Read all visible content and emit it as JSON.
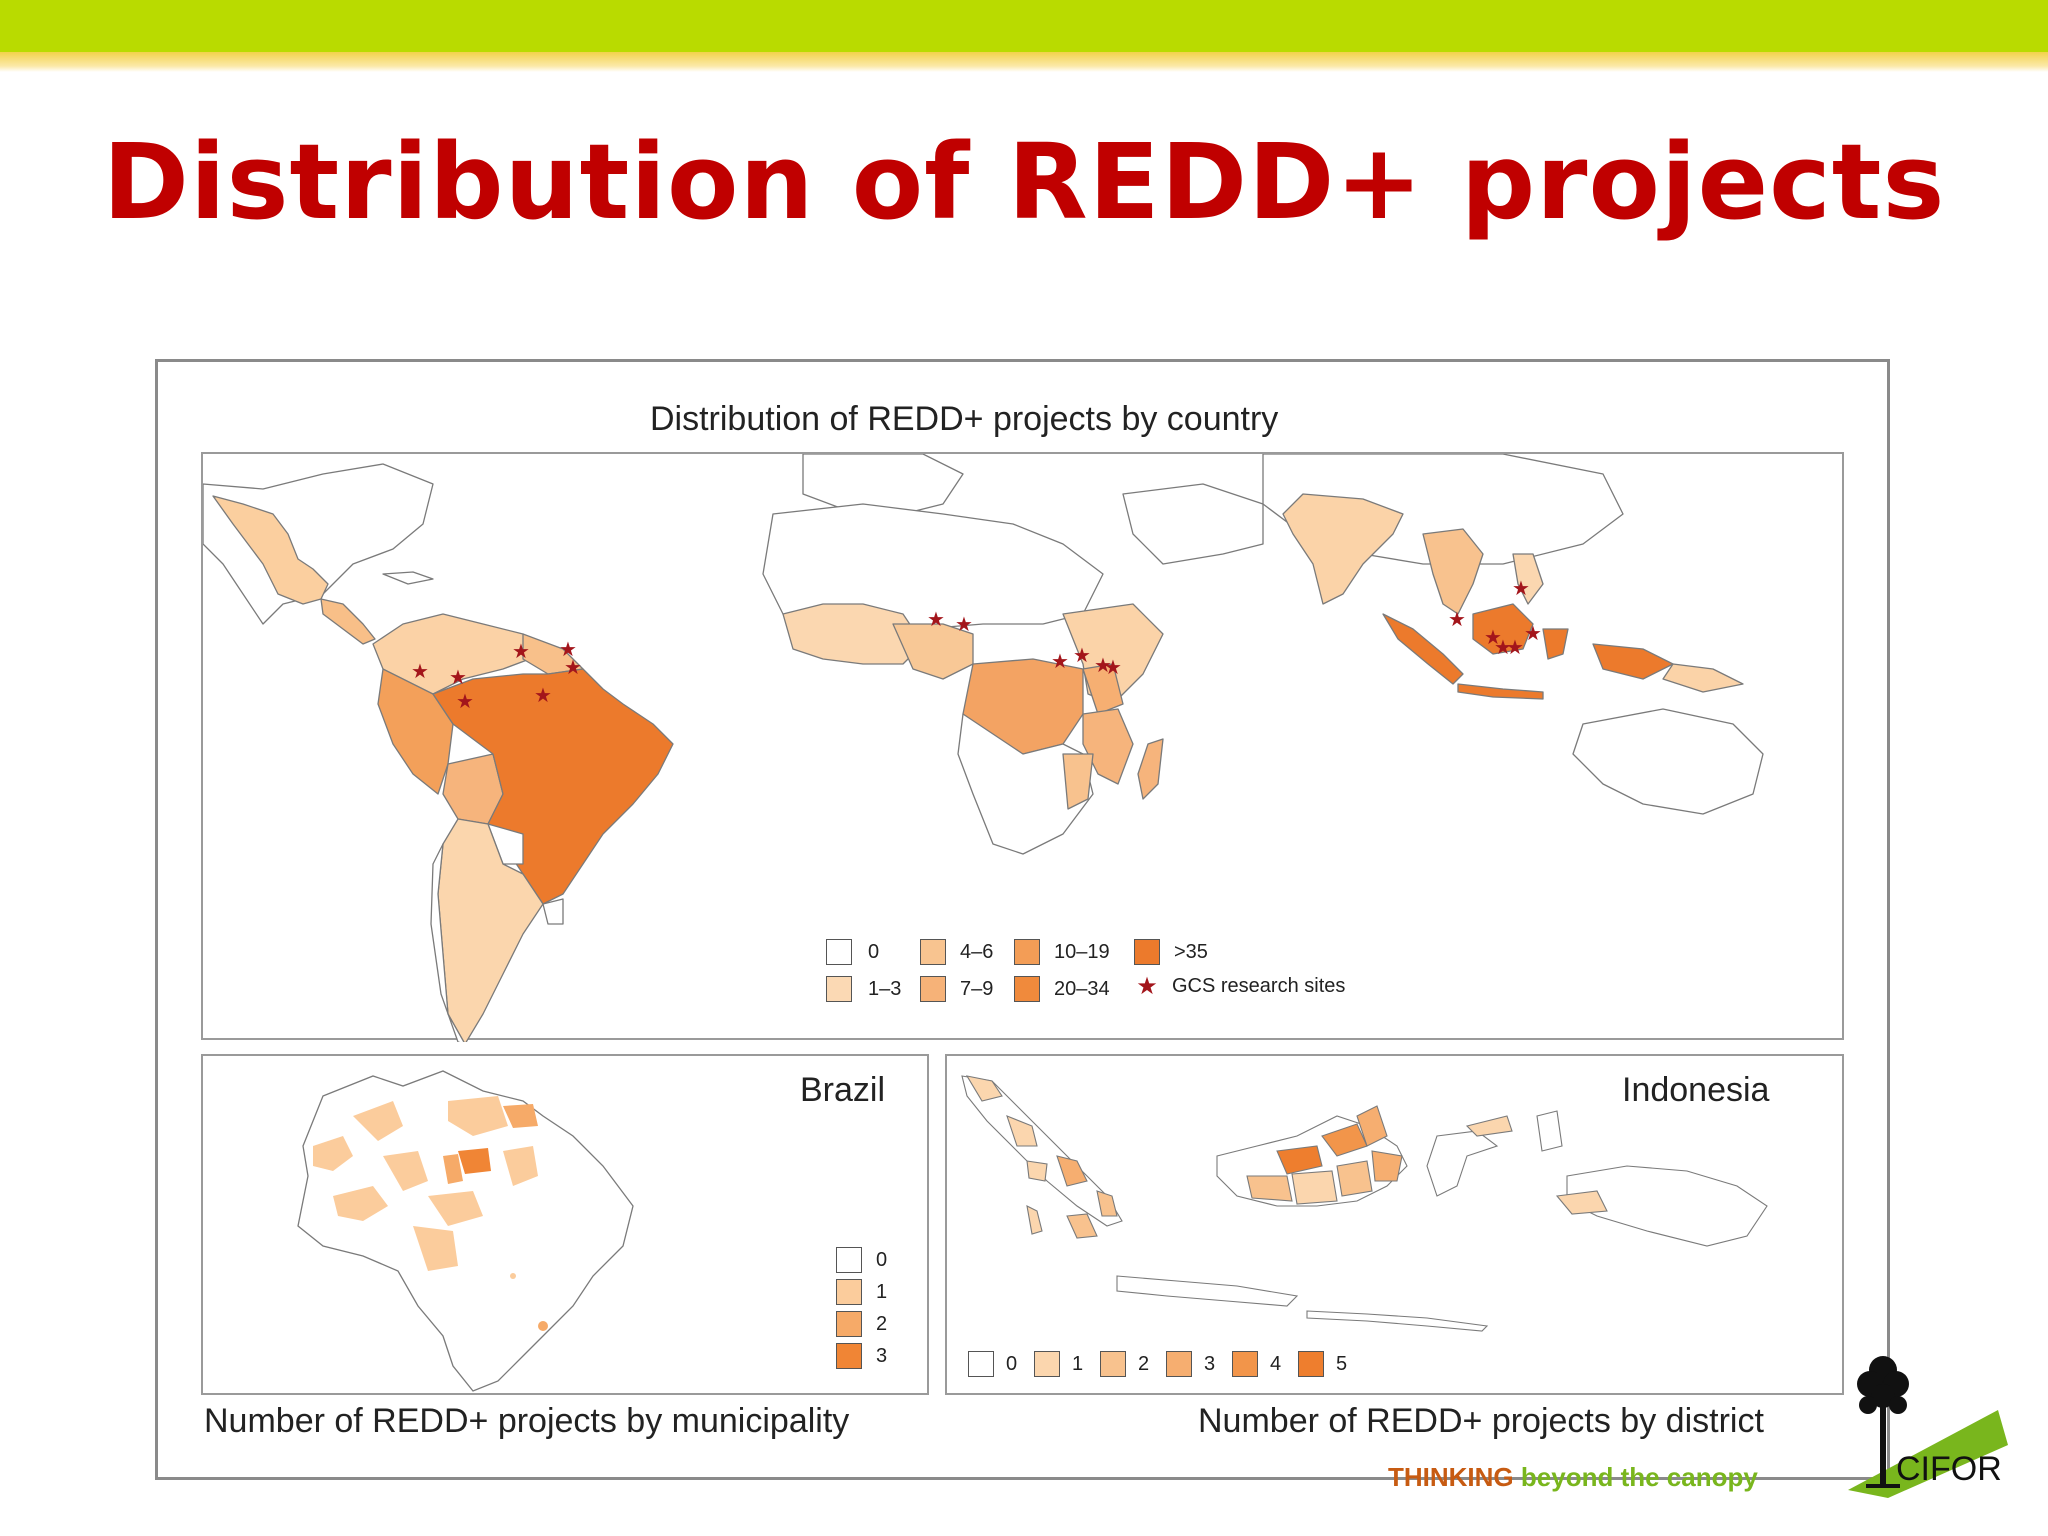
{
  "slide": {
    "title": "Distribution of REDD+ projects",
    "colors": {
      "title": "#c00000",
      "bar_green": "#b9db00",
      "bar_yellow": "#f3d24a"
    }
  },
  "world_map": {
    "title": "Distribution of REDD+ projects by country",
    "legend": [
      {
        "label": "0",
        "color": "#ffffff"
      },
      {
        "label": "1–3",
        "color": "#fbd9b4"
      },
      {
        "label": "4–6",
        "color": "#f8c490"
      },
      {
        "label": "7–9",
        "color": "#f6b278"
      },
      {
        "label": "10–19",
        "color": "#f39d56"
      },
      {
        "label": "20–34",
        "color": "#f08a3c"
      },
      {
        "label": ">35",
        "color": "#ec7a2c"
      },
      {
        "label": "GCS research sites",
        "color": "#a3151b"
      }
    ]
  },
  "brazil_map": {
    "region": "Brazil",
    "caption": "Number of REDD+ projects by municipality",
    "legend": [
      {
        "label": "0",
        "color": "#ffffff"
      },
      {
        "label": "1",
        "color": "#fbcc9c"
      },
      {
        "label": "2",
        "color": "#f6aa68"
      },
      {
        "label": "3",
        "color": "#f08535"
      }
    ]
  },
  "indonesia_map": {
    "region": "Indonesia",
    "caption": "Number of REDD+ projects by district",
    "legend": [
      {
        "label": "0",
        "color": "#ffffff"
      },
      {
        "label": "1",
        "color": "#fbd6ae"
      },
      {
        "label": "2",
        "color": "#f8c28e"
      },
      {
        "label": "3",
        "color": "#f6ae70"
      },
      {
        "label": "4",
        "color": "#f2954a"
      },
      {
        "label": "5",
        "color": "#ee7e2e"
      }
    ]
  },
  "footer": {
    "tagline_part1": "THINKING",
    "tagline_part2": " beyond the canopy",
    "logo_text": "CIFOR"
  }
}
